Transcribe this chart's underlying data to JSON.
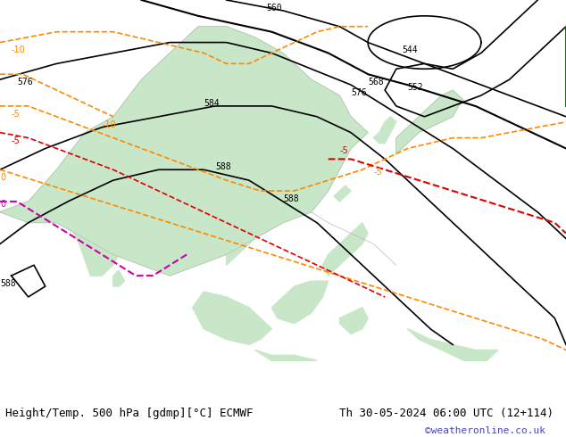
{
  "title_left": "Height/Temp. 500 hPa [gdmp][°C] ECMWF",
  "title_right": "Th 30-05-2024 06:00 UTC (12+114)",
  "credit": "©weatheronline.co.uk",
  "bg_color": "#e8e8e8",
  "land_color": "#c8e6c8",
  "border_color": "#aaaaaa",
  "fig_width": 6.34,
  "fig_height": 4.9,
  "dpi": 100,
  "xlim": [
    60,
    160
  ],
  "ylim": [
    -15,
    60
  ],
  "title_fontsize": 9,
  "credit_fontsize": 8,
  "credit_color": "#4444cc"
}
